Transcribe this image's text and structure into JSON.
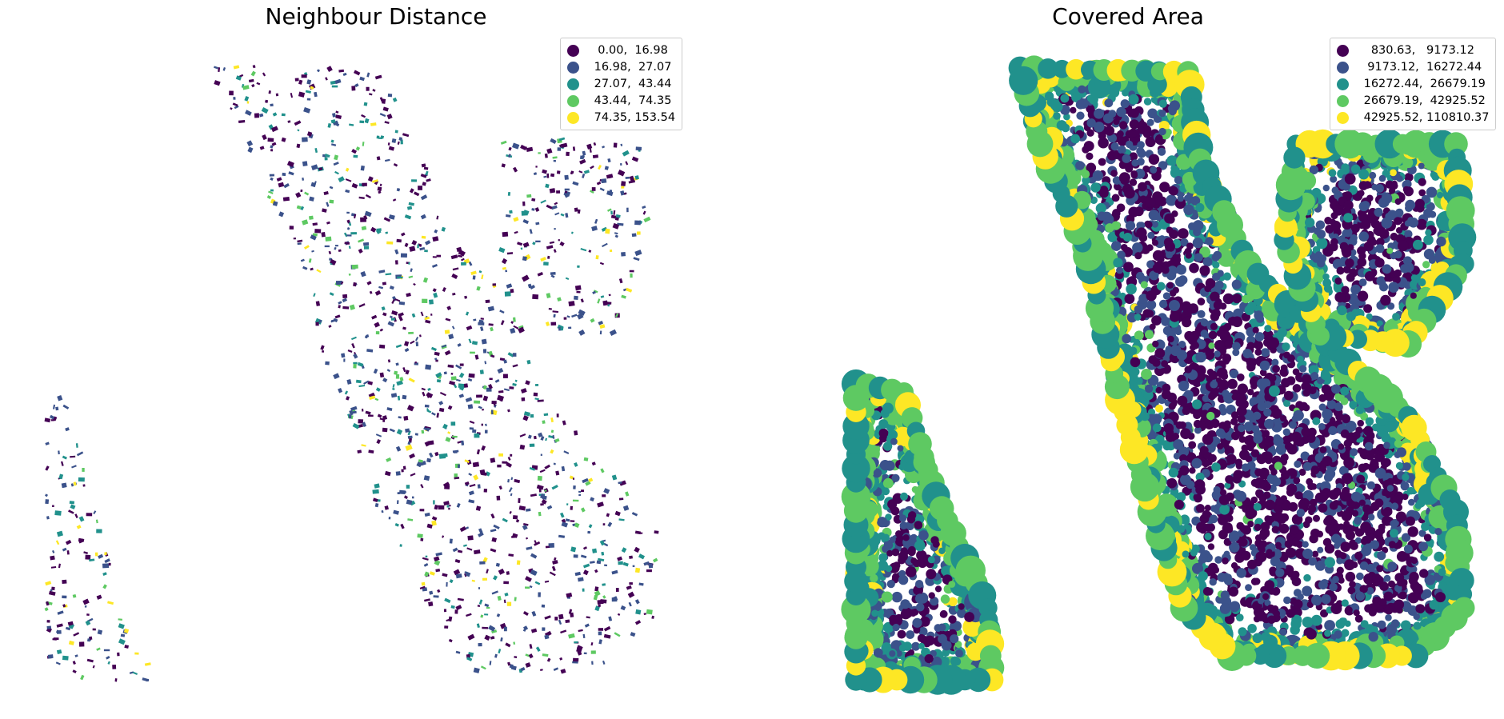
{
  "left_map": {
    "title": "Neighbour Distance",
    "legend": [
      {
        "label": "  0.00,  16.98",
        "color": "#440154"
      },
      {
        "label": " 16.98,  27.07",
        "color": "#3b528b"
      },
      {
        "label": " 27.07,  43.44",
        "color": "#21918c"
      },
      {
        "label": " 43.44,  74.35",
        "color": "#5ec962"
      },
      {
        "label": " 74.35, 153.54",
        "color": "#fde725"
      }
    ]
  },
  "right_map": {
    "title": "Covered Area",
    "legend": [
      {
        "label": "   830.63,   9173.12",
        "color": "#440154"
      },
      {
        "label": "  9173.12,  16272.44",
        "color": "#3b528b"
      },
      {
        "label": " 16272.44,  26679.19",
        "color": "#21918c"
      },
      {
        "label": " 26679.19,  42925.52",
        "color": "#5ec962"
      },
      {
        "label": " 42925.52, 110810.37",
        "color": "#fde725"
      }
    ]
  },
  "palette": [
    "#440154",
    "#3b528b",
    "#21918c",
    "#5ec962",
    "#fde725"
  ]
}
